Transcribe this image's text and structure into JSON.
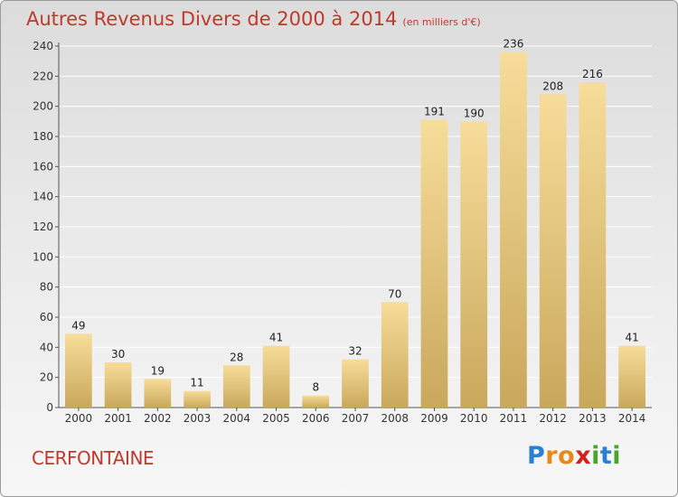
{
  "title": "Autres Revenus Divers de 2000 à 2014",
  "subtitle": "(en milliers d'€)",
  "place": "CERFONTAINE",
  "logo": [
    "P",
    "r",
    "o",
    "x",
    "i",
    "t",
    "i"
  ],
  "colors": {
    "title": "#c0392b",
    "bar_light": "#f7dd9a",
    "bar_dark": "#c9a85c",
    "axis": "#555555",
    "grid": "#ffffff"
  },
  "chart_data": {
    "type": "bar",
    "categories": [
      "2000",
      "2001",
      "2002",
      "2003",
      "2004",
      "2005",
      "2006",
      "2007",
      "2008",
      "2009",
      "2010",
      "2011",
      "2012",
      "2013",
      "2014"
    ],
    "values": [
      49,
      30,
      19,
      11,
      28,
      41,
      8,
      32,
      70,
      191,
      190,
      236,
      208,
      216,
      41
    ],
    "title": "Autres Revenus Divers de 2000 à 2014",
    "subtitle": "(en milliers d'€)",
    "xlabel": "",
    "ylabel": "",
    "ylim": [
      0,
      240
    ],
    "yticks": [
      0,
      20,
      40,
      60,
      80,
      100,
      120,
      140,
      160,
      180,
      200,
      220,
      240
    ],
    "grid": true,
    "legend": "none"
  }
}
